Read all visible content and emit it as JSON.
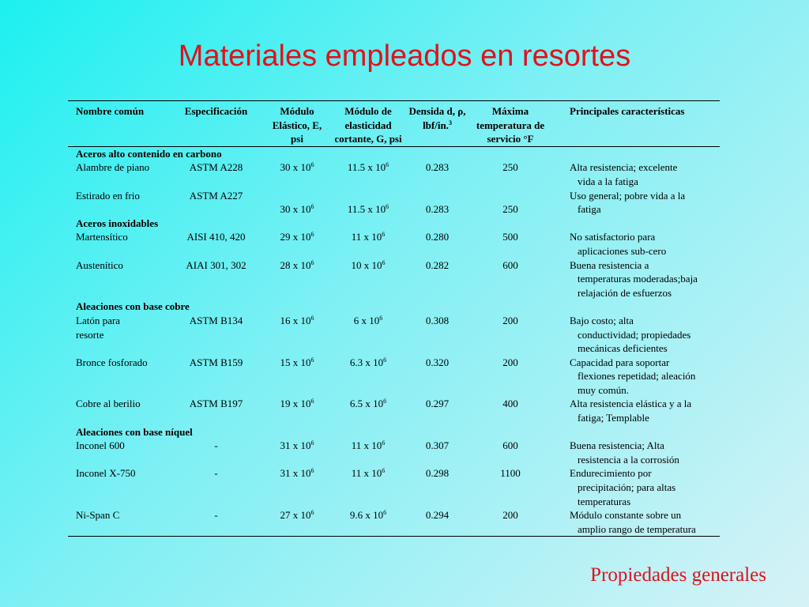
{
  "title": "Materiales empleados en resortes",
  "footer": "Propiedades generales",
  "colors": {
    "title": "#e0121c",
    "footer": "#e0121c"
  },
  "table": {
    "headers": {
      "nombre": "Nombre común",
      "especificacion": "Especificación",
      "modulo_elastico": "Módulo Elástico, E,  psi",
      "modulo_cortante": "Módulo de elasticidad cortante,  G, psi",
      "densidad": "Densida d,  ρ, lbf/in.",
      "densidad_exp": "3",
      "temperatura": "Máxima temperatura de servicio °F",
      "caracteristicas": "Principales características"
    },
    "groups": [
      {
        "name": "Aceros alto contenido en carbono",
        "rows": [
          {
            "nombre": "Alambre de piano",
            "spec": "ASTM A228",
            "e": "30 x 10",
            "e_exp": "6",
            "g": "11.5 x 10",
            "g_exp": "6",
            "d": "0.283",
            "t": "250",
            "desc1": "Alta resistencia; excelente",
            "desc2": "vida a la fatiga"
          },
          {
            "nombre": "Estirado en frio",
            "spec": "ASTM A227",
            "e": "30 x 10",
            "e_exp": "6",
            "g": "11.5 x 10",
            "g_exp": "6",
            "d": "0.283",
            "t": "250",
            "desc1": "Uso general; pobre vida a la",
            "desc2": "fatiga"
          }
        ]
      },
      {
        "name": "Aceros inoxidables",
        "rows": [
          {
            "nombre": "Martensítico",
            "spec": "AISI 410, 420",
            "e": "29 x 10",
            "e_exp": "6",
            "g": "11 x 10",
            "g_exp": "6",
            "d": "0.280",
            "t": "500",
            "desc1": "No satisfactorio para",
            "desc2": "aplicaciones sub-cero"
          },
          {
            "nombre": "Austenítico",
            "spec": "AIAI 301, 302",
            "e": "28 x 10",
            "e_exp": "6",
            "g": "10 x 10",
            "g_exp": "6",
            "d": "0.282",
            "t": "600",
            "desc1": "Buena resistencia a",
            "desc2": "temperaturas moderadas;baja",
            "desc3": "relajación de esfuerzos"
          }
        ]
      },
      {
        "name": "Aleaciones con base cobre",
        "rows": [
          {
            "nombre": "Latón para",
            "nombre2": "resorte",
            "spec": "ASTM B134",
            "e": "16 x 10",
            "e_exp": "6",
            "g": "6 x 10",
            "g_exp": "6",
            "d": "0.308",
            "t": "200",
            "desc1": "Bajo costo; alta",
            "desc2": "conductividad; propiedades",
            "desc3": "mecánicas deficientes"
          },
          {
            "nombre": "Bronce fosforado",
            "spec": "ASTM B159",
            "e": "15 x 10",
            "e_exp": "6",
            "g": "6.3 x 10",
            "g_exp": "6",
            "d": "0.320",
            "t": "200",
            "desc1": "Capacidad para soportar",
            "desc2": "flexiones repetidad; aleación",
            "desc3": "muy común."
          },
          {
            "nombre": "Cobre al berilio",
            "spec": "ASTM B197",
            "e": "19 x 10",
            "e_exp": "6",
            "g": "6.5 x 10",
            "g_exp": "6",
            "d": "0.297",
            "t": "400",
            "desc1": "Alta resistencia elástica y a la",
            "desc2": "fatiga; Templable"
          }
        ]
      },
      {
        "name": "Aleaciones con base níquel",
        "rows": [
          {
            "nombre": "Inconel 600",
            "spec": "-",
            "e": "31 x 10",
            "e_exp": "6",
            "g": "11 x 10",
            "g_exp": "6",
            "d": "0.307",
            "t": "600",
            "desc1": "Buena resistencia; Alta",
            "desc2": "resistencia a la corrosión"
          },
          {
            "nombre": "Inconel X-750",
            "spec": "-",
            "e": "31 x 10",
            "e_exp": "6",
            "g": "11 x 10",
            "g_exp": "6",
            "d": "0.298",
            "t": "1100",
            "desc1": "Endurecimiento por",
            "desc2": "precipitación; para altas",
            "desc3": "temperaturas"
          },
          {
            "nombre": "Ni-Span C",
            "spec": "-",
            "e": "27 x 10",
            "e_exp": "6",
            "g": "9.6 x 10",
            "g_exp": "6",
            "d": "0.294",
            "t": "200",
            "desc1": "Módulo constante sobre un",
            "desc2": "amplio rango de temperatura"
          }
        ]
      }
    ]
  }
}
